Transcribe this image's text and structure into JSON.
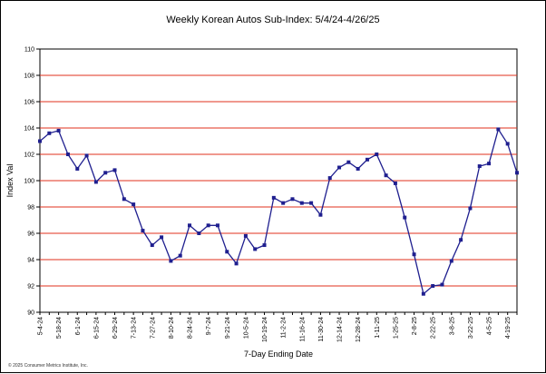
{
  "chart_data": {
    "type": "line",
    "title": "Weekly Korean Autos Sub-Index:  5/4/24-4/26/25",
    "xlabel": "7-Day Ending Date",
    "ylabel": "Index Val",
    "ylim": [
      90,
      110
    ],
    "yticks": [
      "90",
      "92",
      "94",
      "96",
      "98",
      "100",
      "102",
      "104",
      "106",
      "108",
      "110"
    ],
    "grid": "horizontal",
    "legend": "none",
    "x_tick_labels": [
      "5-4-24",
      "5-18-24",
      "6-1-24",
      "6-15-24",
      "6-29-24",
      "7-13-24",
      "7-27-24",
      "8-10-24",
      "8-24-24",
      "9-7-24",
      "9-21-24",
      "10-5-24",
      "10-19-24",
      "11-2-24",
      "11-16-24",
      "11-30-24",
      "12-14-24",
      "12-28-24",
      "1-11-25",
      "1-25-25",
      "2-8-25",
      "2-22-25",
      "3-8-25",
      "3-22-25",
      "4-5-25",
      "4-19-25"
    ],
    "series": [
      {
        "color": "#1f1f8f",
        "values": [
          103.0,
          103.6,
          103.8,
          102.0,
          100.9,
          101.9,
          99.9,
          100.6,
          100.8,
          98.6,
          98.2,
          96.2,
          95.1,
          95.7,
          93.9,
          94.3,
          96.6,
          96.0,
          96.6,
          96.6,
          94.6,
          93.7,
          95.8,
          94.8,
          95.1,
          98.7,
          98.3,
          98.6,
          98.3,
          98.3,
          97.4,
          100.2,
          101.0,
          101.4,
          100.9,
          101.6,
          102.0,
          100.4,
          99.8,
          97.2,
          94.4,
          91.4,
          92.0,
          92.1,
          93.9,
          95.5,
          97.9,
          101.1,
          101.3,
          103.9,
          102.8,
          100.6
        ]
      }
    ]
  },
  "footer": {
    "copyright": "© 2025 Consumer Metrics Institute, Inc."
  }
}
